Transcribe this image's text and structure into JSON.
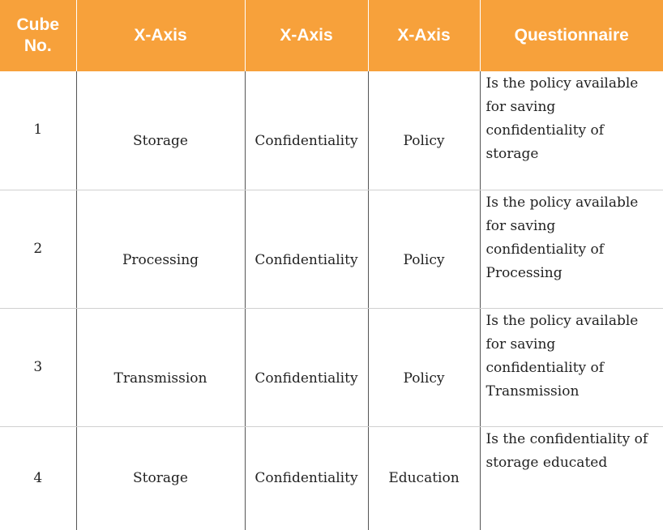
{
  "table": {
    "headers": [
      "Cube No.",
      "X-Axis",
      "X-Axis",
      "X-Axis",
      "Questionnaire"
    ],
    "rows": [
      {
        "cube_no": "1",
        "col2": "Storage",
        "col3": "Confidentiality",
        "col4": "Policy",
        "question": "Is the policy available for saving confidentiality of storage"
      },
      {
        "cube_no": "2",
        "col2": "Processing",
        "col3": "Confidentiality",
        "col4": "Policy",
        "question": "Is the policy available for saving confidentiality of Processing"
      },
      {
        "cube_no": "3",
        "col2": "Transmission",
        "col3": "Confidentiality",
        "col4": "Policy",
        "question": "Is the policy available for saving confidentiality of Transmission"
      },
      {
        "cube_no": "4",
        "col2": "Storage",
        "col3": "Confidentiality",
        "col4": "Education",
        "question": "Is the confidentiality of storage  educated"
      }
    ]
  }
}
